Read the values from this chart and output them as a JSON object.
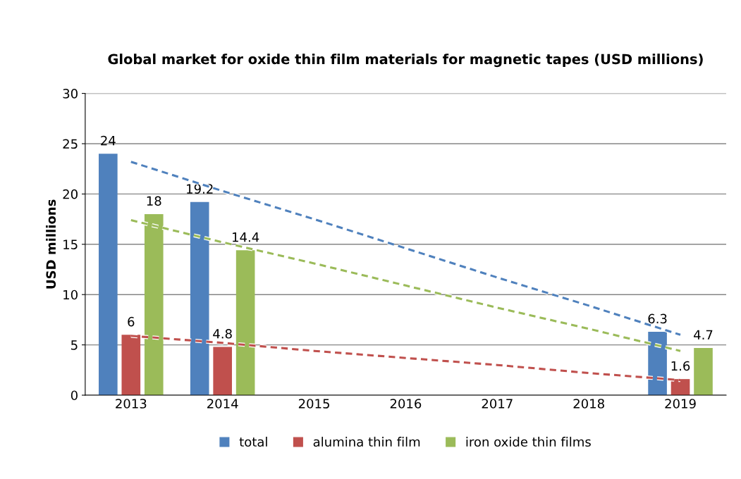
{
  "chart_data": {
    "type": "bar",
    "title": "Global market for oxide thin film materials for magnetic tapes (USD millions)",
    "ylabel": "USD millions",
    "categories": [
      "2013",
      "2014",
      "2015",
      "2016",
      "2017",
      "2018",
      "2019"
    ],
    "series": [
      {
        "name": "total",
        "color": "#4f81bd",
        "values": [
          24,
          19.2,
          null,
          null,
          null,
          null,
          6.3
        ],
        "value_labels": [
          "24",
          "19.2",
          null,
          null,
          null,
          null,
          "6.3"
        ]
      },
      {
        "name": "alumina thin film",
        "color": "#c0504d",
        "values": [
          6,
          4.8,
          null,
          null,
          null,
          null,
          1.6
        ],
        "value_labels": [
          "6",
          "4.8",
          null,
          null,
          null,
          null,
          "1.6"
        ]
      },
      {
        "name": "iron oxide thin films",
        "color": "#9bbb59",
        "values": [
          18,
          14.4,
          null,
          null,
          null,
          null,
          4.7
        ],
        "value_labels": [
          "18",
          "14.4",
          null,
          null,
          null,
          null,
          "4.7"
        ]
      },
      {
        "type": "line",
        "color": "#4f81bd",
        "line_style": "dashed",
        "values": [
          23.2,
          20.3,
          17.5,
          14.6,
          11.7,
          8.9,
          6.0
        ]
      },
      {
        "type": "line",
        "color": "#c0504d",
        "line_style": "dashed",
        "values": [
          5.9,
          5.2,
          4.4,
          3.7,
          3.0,
          2.2,
          1.5
        ]
      },
      {
        "type": "line",
        "color": "#9bbb59",
        "line_style": "dashed",
        "values": [
          17.4,
          15.2,
          13.1,
          10.9,
          8.7,
          6.6,
          4.4
        ]
      }
    ],
    "ylim": [
      0,
      30
    ],
    "yticks": [
      0,
      5,
      10,
      15,
      20,
      25,
      30
    ],
    "grid": "y",
    "legend": "bottom"
  }
}
